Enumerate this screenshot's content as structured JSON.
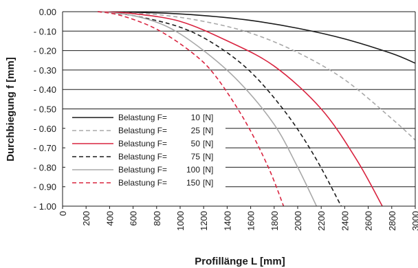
{
  "chart_data": {
    "type": "line",
    "xlabel": "Profillänge L  [mm]",
    "ylabel": "Durchbiegung f [mm]",
    "xlim": [
      0,
      3000
    ],
    "ylim": [
      -1.0,
      0.0
    ],
    "x_ticks": [
      "0",
      "200",
      "400",
      "600",
      "800",
      "1000",
      "1200",
      "1400",
      "1600",
      "1800",
      "2000",
      "2200",
      "2400",
      "2600",
      "2800",
      "3000"
    ],
    "y_ticks": [
      "0.00",
      "- 0.10",
      "- 0.20",
      "- 0.30",
      "- 0.40",
      "- 0.50",
      "- 0.60",
      "- 0.70",
      "- 0.80",
      "- 0.90",
      "- 1.00"
    ],
    "grid": "horizontal",
    "legend_position": "bottom-left",
    "legend_prefix": "Belastung F=",
    "series": [
      {
        "name": "10 [N]",
        "load": "10",
        "unit": "[N]",
        "color": "#1a1a1a",
        "dash": "solid",
        "x": [
          300,
          800,
          1200,
          1600,
          2000,
          2400,
          2800,
          3000
        ],
        "y": [
          0.0,
          -0.006,
          -0.02,
          -0.045,
          -0.085,
          -0.14,
          -0.215,
          -0.265
        ]
      },
      {
        "name": "25 [N]",
        "load": "25",
        "unit": "[N]",
        "color": "#a8a8a8",
        "dash": "dashed",
        "x": [
          300,
          800,
          1200,
          1600,
          2000,
          2400,
          2800,
          3000
        ],
        "y": [
          0.0,
          -0.015,
          -0.05,
          -0.11,
          -0.21,
          -0.35,
          -0.55,
          -0.66
        ]
      },
      {
        "name": "50 [N]",
        "load": "50",
        "unit": "[N]",
        "color": "#d9233f",
        "dash": "solid",
        "x": [
          300,
          600,
          1000,
          1400,
          1800,
          2200,
          2500,
          2720
        ],
        "y": [
          0.0,
          -0.01,
          -0.05,
          -0.15,
          -0.28,
          -0.5,
          -0.76,
          -1.0
        ]
      },
      {
        "name": "75 [N]",
        "load": "75",
        "unit": "[N]",
        "color": "#1a1a1a",
        "dash": "dashed",
        "x": [
          300,
          600,
          1000,
          1300,
          1600,
          1900,
          2150,
          2370
        ],
        "y": [
          0.0,
          -0.02,
          -0.08,
          -0.17,
          -0.31,
          -0.52,
          -0.75,
          -1.0
        ]
      },
      {
        "name": "100 [N]",
        "load": "100",
        "unit": "[N]",
        "color": "#a8a8a8",
        "dash": "solid",
        "x": [
          300,
          600,
          900,
          1200,
          1500,
          1800,
          2000,
          2160
        ],
        "y": [
          0.0,
          -0.02,
          -0.08,
          -0.2,
          -0.36,
          -0.58,
          -0.8,
          -1.0
        ]
      },
      {
        "name": "150 [N]",
        "load": "150",
        "unit": "[N]",
        "color": "#d9233f",
        "dash": "dashed",
        "x": [
          300,
          500,
          800,
          1100,
          1300,
          1550,
          1750,
          1880
        ],
        "y": [
          0.0,
          -0.02,
          -0.09,
          -0.21,
          -0.33,
          -0.56,
          -0.8,
          -1.0
        ]
      }
    ]
  }
}
